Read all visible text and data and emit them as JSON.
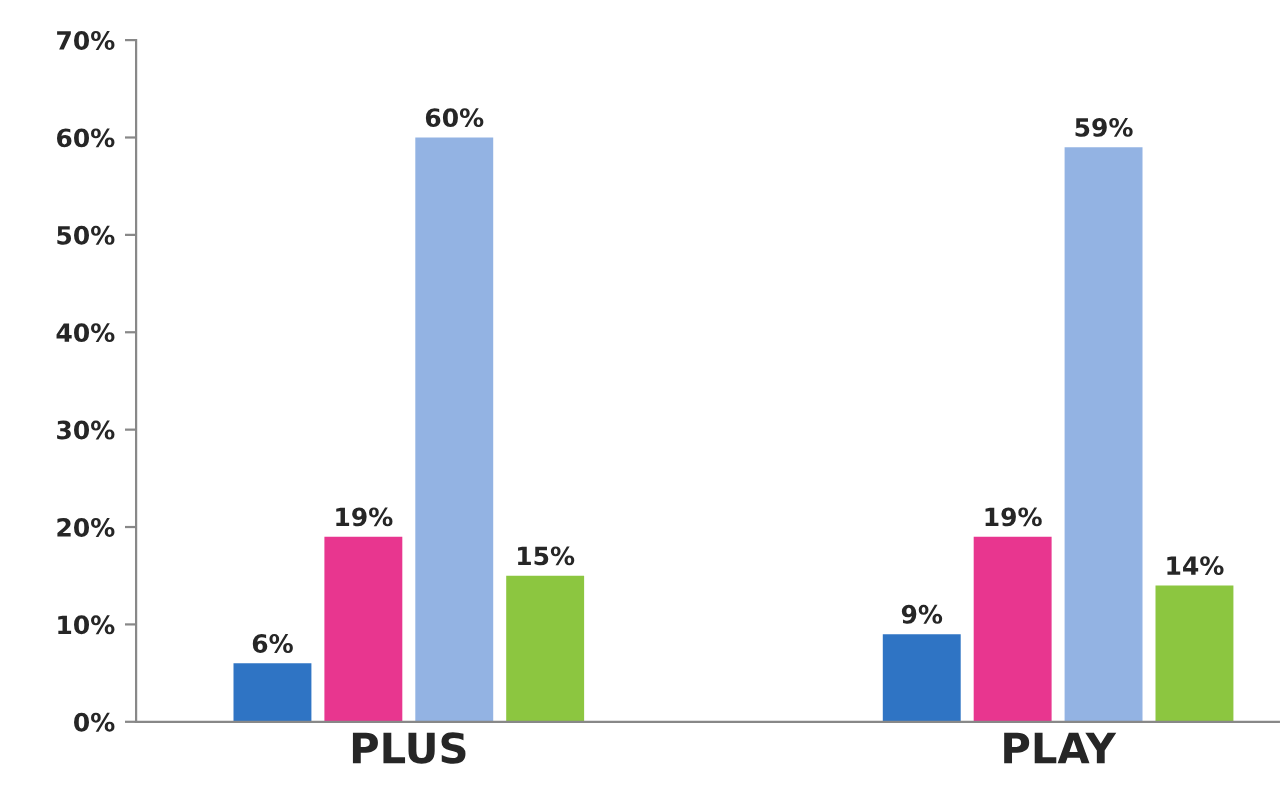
{
  "chart_data": {
    "type": "bar",
    "categories": [
      "PLUS",
      "PLAY"
    ],
    "series": [
      {
        "color": "#2f74c4",
        "values": [
          6,
          9
        ]
      },
      {
        "color": "#e8368f",
        "values": [
          19,
          19
        ]
      },
      {
        "color": "#93b3e3",
        "values": [
          60,
          59
        ]
      },
      {
        "color": "#8cc640",
        "values": [
          15,
          14
        ]
      }
    ],
    "ylim": [
      0,
      70
    ],
    "yticks": [
      {
        "value": 0,
        "label": "0%"
      },
      {
        "value": 10,
        "label": "10%"
      },
      {
        "value": 20,
        "label": "20%"
      },
      {
        "value": 30,
        "label": "30%"
      },
      {
        "value": 40,
        "label": "40%"
      },
      {
        "value": 50,
        "label": "50%"
      },
      {
        "value": 60,
        "label": "60%"
      },
      {
        "value": 70,
        "label": "70%"
      }
    ],
    "value_labels": [
      [
        "6%",
        "9%"
      ],
      [
        "19%",
        "19%"
      ],
      [
        "60%",
        "59%"
      ],
      [
        "15%",
        "14%"
      ]
    ],
    "grid": false,
    "legend": false
  }
}
